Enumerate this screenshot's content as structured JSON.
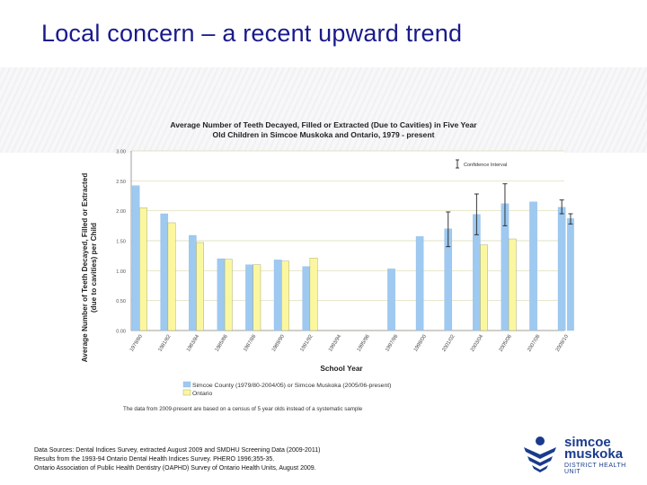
{
  "slide": {
    "title": "Local concern – a recent upward trend"
  },
  "chart_data": {
    "type": "bar",
    "title_line1": "Average Number of Teeth Decayed, Filled or Extracted (Due to Cavities) in Five Year",
    "title_line2": "Old Children in Simcoe Muskoka and Ontario, 1979 - present",
    "ylabel_line1": "Average Number of Teeth Decayed, Filled or Extracted",
    "ylabel_line2": "(due to cavities) per Child",
    "xlabel": "School Year",
    "ylim": [
      0,
      3.0
    ],
    "yticks": [
      "0.00",
      "0.50",
      "1.00",
      "1.50",
      "2.00",
      "2.50",
      "3.00"
    ],
    "categories": [
      "1979/80",
      "1981/82",
      "1983/84",
      "1985/86",
      "1987/88",
      "1989/90",
      "1991/92",
      "1993/94",
      "1995/96",
      "1997/98",
      "1999/00",
      "2001/02",
      "2003/04",
      "2005/06",
      "2007/08",
      "2009/10"
    ],
    "series": [
      {
        "name": "Simcoe County (1979/80-2004/05) or Simcoe Muskoka (2005/06-present)",
        "color": "#9ec9f0",
        "values": [
          2.42,
          1.95,
          1.59,
          1.2,
          1.1,
          1.18,
          1.07,
          null,
          null,
          1.03,
          1.57,
          1.7,
          1.94,
          2.12,
          2.15,
          2.06
        ],
        "extra_bars": [
          {
            "after_index": 15,
            "value": 1.87
          }
        ],
        "error_bars": [
          {
            "index": 11,
            "low": 1.4,
            "high": 1.98
          },
          {
            "index": 12,
            "low": 1.6,
            "high": 2.28
          },
          {
            "index": 13,
            "low": 1.75,
            "high": 2.45
          },
          {
            "index": 15,
            "low": 1.95,
            "high": 2.18
          },
          {
            "extra": true,
            "low": 1.78,
            "high": 1.95
          }
        ]
      },
      {
        "name": "Ontario",
        "color": "#fbf7a0",
        "values": [
          2.05,
          1.8,
          1.47,
          1.19,
          1.1,
          1.16,
          1.21,
          null,
          null,
          null,
          null,
          null,
          1.43,
          1.53,
          null,
          null
        ]
      }
    ],
    "legend_inset": "Confidence Interval",
    "note": "The data from 2009-present are based on a census of 5 year olds instead of a systematic sample",
    "grid": "horizontal"
  },
  "footnote": {
    "line1": "Data Sources: Dental Indices Survey, extracted August 2009 and SMDHU Screening Data (2009-2011)",
    "line2": "Results from the 1993-94 Ontario Dental Health Indices Survey. PHERO 1996;355-35.",
    "line3": "Ontario Association of Public Health Dentistry (OAPHD) Survey of Ontario Health Units, August 2009."
  },
  "logo": {
    "line1": "simcoe",
    "line2": "muskoka",
    "line3": "DISTRICT HEALTH UNIT",
    "color": "#1a3b8c"
  }
}
